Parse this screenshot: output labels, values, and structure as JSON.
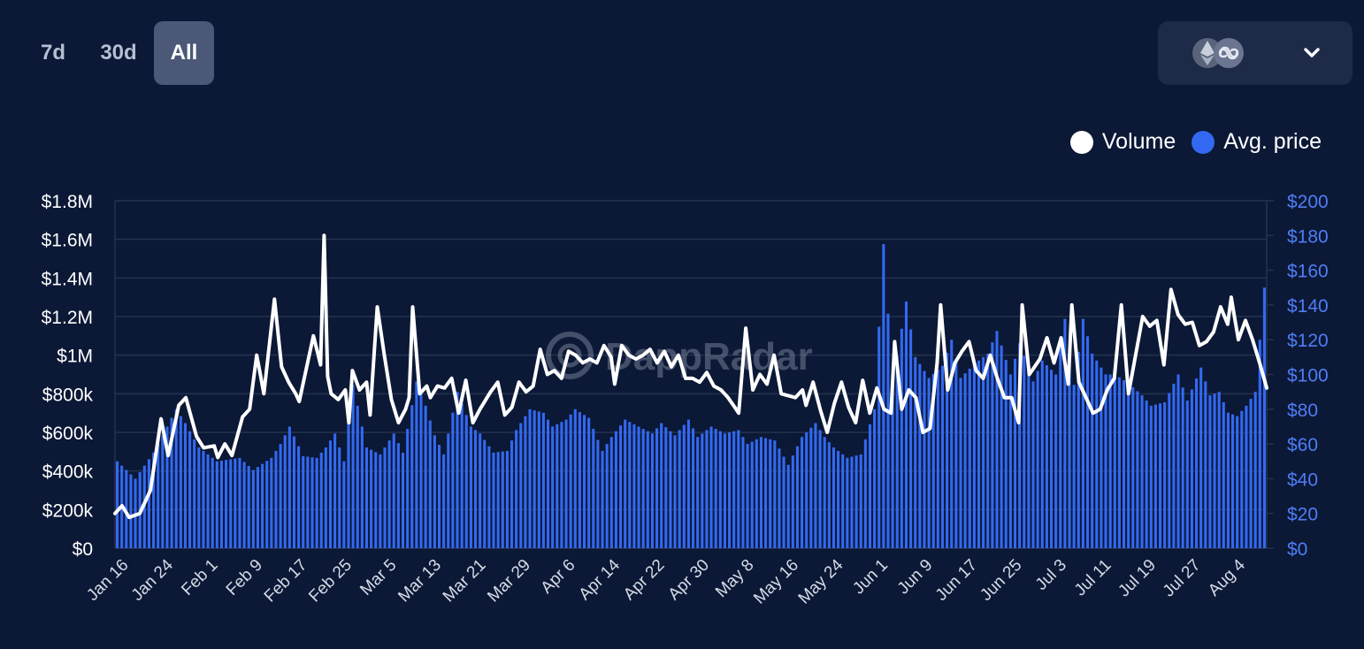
{
  "tabs": [
    {
      "label": "7d",
      "active": false
    },
    {
      "label": "30d",
      "active": false
    },
    {
      "label": "All",
      "active": true
    }
  ],
  "chain_selector": {
    "icons": [
      "ethereum-icon",
      "polygon-icon"
    ]
  },
  "watermark": "DappRadar",
  "colors": {
    "background": "#0b1836",
    "bar": "#3369f2",
    "line": "#ffffff",
    "grid": "#24324f",
    "right_axis_text": "#4f7df5"
  },
  "chart_data": {
    "type": "bar+line",
    "legend": [
      {
        "name": "Volume",
        "color": "#ffffff"
      },
      {
        "name": "Avg. price",
        "color": "#3369f2"
      }
    ],
    "left_axis": {
      "ticks": [
        "$0",
        "$200k",
        "$400k",
        "$600k",
        "$800k",
        "$1M",
        "$1.2M",
        "$1.4M",
        "$1.6M",
        "$1.8M"
      ],
      "range": [
        0,
        1800000
      ]
    },
    "right_axis": {
      "ticks": [
        "$0",
        "$20",
        "$40",
        "$60",
        "$80",
        "$100",
        "$120",
        "$140",
        "$160",
        "$180",
        "$200"
      ],
      "range": [
        0,
        200
      ]
    },
    "x_labels": [
      "Jan 16",
      "Jan 24",
      "Feb 1",
      "Feb 9",
      "Feb 17",
      "Feb 25",
      "Mar 5",
      "Mar 13",
      "Mar 21",
      "Mar 29",
      "Apr 6",
      "Apr 14",
      "Apr 22",
      "Apr 30",
      "May 8",
      "May 16",
      "May 24",
      "Jun 1",
      "Jun 9",
      "Jun 17",
      "Jun 25",
      "Jul 3",
      "Jul 11",
      "Jul 19",
      "Jul 27",
      "Aug 4"
    ],
    "series": [
      {
        "name": "Avg. price",
        "axis": "right",
        "kind": "bar",
        "anchors": [
          [
            0,
            50
          ],
          [
            4,
            40
          ],
          [
            8,
            55
          ],
          [
            10,
            65
          ],
          [
            13,
            80
          ],
          [
            15,
            72
          ],
          [
            18,
            58
          ],
          [
            22,
            50
          ],
          [
            27,
            52
          ],
          [
            30,
            45
          ],
          [
            34,
            52
          ],
          [
            36,
            60
          ],
          [
            38,
            70
          ],
          [
            41,
            53
          ],
          [
            44,
            52
          ],
          [
            46,
            58
          ],
          [
            48,
            66
          ],
          [
            50,
            50
          ],
          [
            52,
            94
          ],
          [
            55,
            58
          ],
          [
            58,
            54
          ],
          [
            61,
            66
          ],
          [
            63,
            55
          ],
          [
            66,
            96
          ],
          [
            68,
            82
          ],
          [
            70,
            65
          ],
          [
            72,
            54
          ],
          [
            75,
            90
          ],
          [
            78,
            70
          ],
          [
            80,
            66
          ],
          [
            83,
            55
          ],
          [
            86,
            56
          ],
          [
            88,
            68
          ],
          [
            91,
            80
          ],
          [
            94,
            78
          ],
          [
            96,
            70
          ],
          [
            99,
            74
          ],
          [
            101,
            80
          ],
          [
            104,
            75
          ],
          [
            107,
            56
          ],
          [
            109,
            64
          ],
          [
            112,
            74
          ],
          [
            115,
            70
          ],
          [
            118,
            66
          ],
          [
            120,
            72
          ],
          [
            123,
            65
          ],
          [
            126,
            74
          ],
          [
            128,
            64
          ],
          [
            131,
            70
          ],
          [
            134,
            66
          ],
          [
            137,
            68
          ],
          [
            139,
            60
          ],
          [
            142,
            64
          ],
          [
            145,
            62
          ],
          [
            148,
            48
          ],
          [
            151,
            64
          ],
          [
            154,
            72
          ],
          [
            156,
            64
          ],
          [
            158,
            58
          ],
          [
            161,
            52
          ],
          [
            164,
            54
          ],
          [
            167,
            80
          ],
          [
            169,
            175
          ],
          [
            171,
            95
          ],
          [
            174,
            142
          ],
          [
            176,
            110
          ],
          [
            179,
            98
          ],
          [
            182,
            105
          ],
          [
            184,
            120
          ],
          [
            186,
            98
          ],
          [
            189,
            106
          ],
          [
            192,
            112
          ],
          [
            194,
            125
          ],
          [
            197,
            100
          ],
          [
            199,
            118
          ],
          [
            202,
            96
          ],
          [
            204,
            108
          ],
          [
            207,
            100
          ],
          [
            209,
            132
          ],
          [
            211,
            94
          ],
          [
            213,
            132
          ],
          [
            215,
            112
          ],
          [
            218,
            100
          ],
          [
            220,
            100
          ],
          [
            223,
            95
          ],
          [
            226,
            88
          ],
          [
            228,
            82
          ],
          [
            231,
            84
          ],
          [
            234,
            100
          ],
          [
            236,
            85
          ],
          [
            239,
            104
          ],
          [
            241,
            88
          ],
          [
            243,
            90
          ],
          [
            245,
            78
          ],
          [
            247,
            76
          ],
          [
            249,
            82
          ],
          [
            251,
            90
          ],
          [
            253,
            150
          ]
        ]
      },
      {
        "name": "Volume",
        "axis": "left",
        "kind": "line",
        "anchors": [
          [
            0,
            180000
          ],
          [
            2,
            220000
          ],
          [
            4,
            160000
          ],
          [
            7,
            180000
          ],
          [
            10,
            300000
          ],
          [
            13,
            670000
          ],
          [
            15,
            480000
          ],
          [
            18,
            740000
          ],
          [
            20,
            780000
          ],
          [
            23,
            580000
          ],
          [
            25,
            520000
          ],
          [
            28,
            530000
          ],
          [
            29,
            470000
          ],
          [
            31,
            540000
          ],
          [
            33,
            480000
          ],
          [
            36,
            680000
          ],
          [
            38,
            720000
          ],
          [
            40,
            1000000
          ],
          [
            42,
            800000
          ],
          [
            45,
            1290000
          ],
          [
            47,
            940000
          ],
          [
            49,
            860000
          ],
          [
            51,
            800000
          ],
          [
            52,
            760000
          ],
          [
            54,
            930000
          ],
          [
            56,
            1100000
          ],
          [
            58,
            950000
          ],
          [
            59,
            1620000
          ],
          [
            60,
            890000
          ],
          [
            61,
            800000
          ],
          [
            63,
            770000
          ],
          [
            65,
            820000
          ],
          [
            66,
            650000
          ],
          [
            67,
            920000
          ],
          [
            69,
            820000
          ],
          [
            71,
            860000
          ],
          [
            72,
            690000
          ],
          [
            74,
            1250000
          ],
          [
            76,
            1000000
          ],
          [
            78,
            770000
          ],
          [
            80,
            650000
          ],
          [
            82,
            720000
          ],
          [
            83,
            780000
          ],
          [
            84,
            1250000
          ],
          [
            86,
            800000
          ],
          [
            88,
            840000
          ],
          [
            89,
            780000
          ],
          [
            91,
            840000
          ],
          [
            93,
            830000
          ],
          [
            95,
            880000
          ],
          [
            97,
            700000
          ],
          [
            99,
            870000
          ],
          [
            101,
            650000
          ],
          [
            103,
            720000
          ],
          [
            106,
            810000
          ],
          [
            108,
            860000
          ],
          [
            110,
            690000
          ],
          [
            112,
            730000
          ],
          [
            114,
            860000
          ],
          [
            116,
            810000
          ],
          [
            118,
            840000
          ],
          [
            120,
            1030000
          ],
          [
            122,
            900000
          ],
          [
            124,
            920000
          ],
          [
            126,
            880000
          ],
          [
            128,
            1020000
          ],
          [
            130,
            1000000
          ],
          [
            132,
            960000
          ],
          [
            134,
            980000
          ],
          [
            136,
            960000
          ],
          [
            138,
            1050000
          ],
          [
            140,
            990000
          ],
          [
            141,
            850000
          ],
          [
            143,
            1050000
          ],
          [
            145,
            1000000
          ],
          [
            147,
            980000
          ],
          [
            149,
            1000000
          ],
          [
            151,
            1030000
          ],
          [
            153,
            960000
          ],
          [
            155,
            1020000
          ],
          [
            157,
            940000
          ],
          [
            159,
            1000000
          ],
          [
            161,
            880000
          ],
          [
            163,
            880000
          ],
          [
            165,
            860000
          ],
          [
            167,
            910000
          ],
          [
            169,
            840000
          ],
          [
            171,
            820000
          ],
          [
            173,
            780000
          ],
          [
            176,
            700000
          ],
          [
            178,
            1140000
          ],
          [
            180,
            820000
          ],
          [
            182,
            900000
          ],
          [
            184,
            850000
          ],
          [
            186,
            1000000
          ],
          [
            188,
            800000
          ],
          [
            190,
            790000
          ],
          [
            192,
            780000
          ],
          [
            194,
            820000
          ],
          [
            195,
            740000
          ],
          [
            197,
            860000
          ],
          [
            199,
            720000
          ],
          [
            201,
            600000
          ],
          [
            203,
            750000
          ],
          [
            205,
            860000
          ],
          [
            207,
            730000
          ],
          [
            209,
            650000
          ],
          [
            211,
            870000
          ],
          [
            213,
            700000
          ],
          [
            215,
            830000
          ],
          [
            217,
            720000
          ],
          [
            219,
            700000
          ],
          [
            220,
            1070000
          ],
          [
            222,
            720000
          ],
          [
            224,
            820000
          ],
          [
            226,
            780000
          ],
          [
            228,
            600000
          ],
          [
            230,
            620000
          ],
          [
            232,
            960000
          ],
          [
            233,
            1260000
          ],
          [
            235,
            820000
          ],
          [
            237,
            960000
          ],
          [
            239,
            1020000
          ],
          [
            241,
            1070000
          ],
          [
            243,
            920000
          ],
          [
            245,
            880000
          ],
          [
            247,
            1000000
          ],
          [
            249,
            880000
          ],
          [
            251,
            780000
          ],
          [
            253,
            780000
          ],
          [
            255,
            650000
          ],
          [
            256,
            1260000
          ],
          [
            258,
            900000
          ],
          [
            261,
            980000
          ],
          [
            263,
            1090000
          ],
          [
            265,
            960000
          ],
          [
            267,
            1090000
          ],
          [
            269,
            850000
          ],
          [
            270,
            1260000
          ],
          [
            272,
            860000
          ],
          [
            274,
            780000
          ],
          [
            276,
            700000
          ],
          [
            278,
            720000
          ],
          [
            280,
            820000
          ],
          [
            282,
            880000
          ],
          [
            284,
            1260000
          ],
          [
            286,
            800000
          ],
          [
            288,
            1000000
          ],
          [
            290,
            1200000
          ],
          [
            292,
            1150000
          ],
          [
            294,
            1180000
          ],
          [
            296,
            950000
          ],
          [
            298,
            1340000
          ],
          [
            300,
            1210000
          ],
          [
            302,
            1160000
          ],
          [
            304,
            1170000
          ],
          [
            306,
            1050000
          ],
          [
            308,
            1070000
          ],
          [
            310,
            1120000
          ],
          [
            312,
            1250000
          ],
          [
            314,
            1160000
          ],
          [
            315,
            1300000
          ],
          [
            317,
            1080000
          ],
          [
            319,
            1180000
          ],
          [
            321,
            1080000
          ],
          [
            323,
            960000
          ],
          [
            325,
            830000
          ]
        ]
      }
    ],
    "point_counts": {
      "Avg. price": 254,
      "Volume": 326
    }
  }
}
